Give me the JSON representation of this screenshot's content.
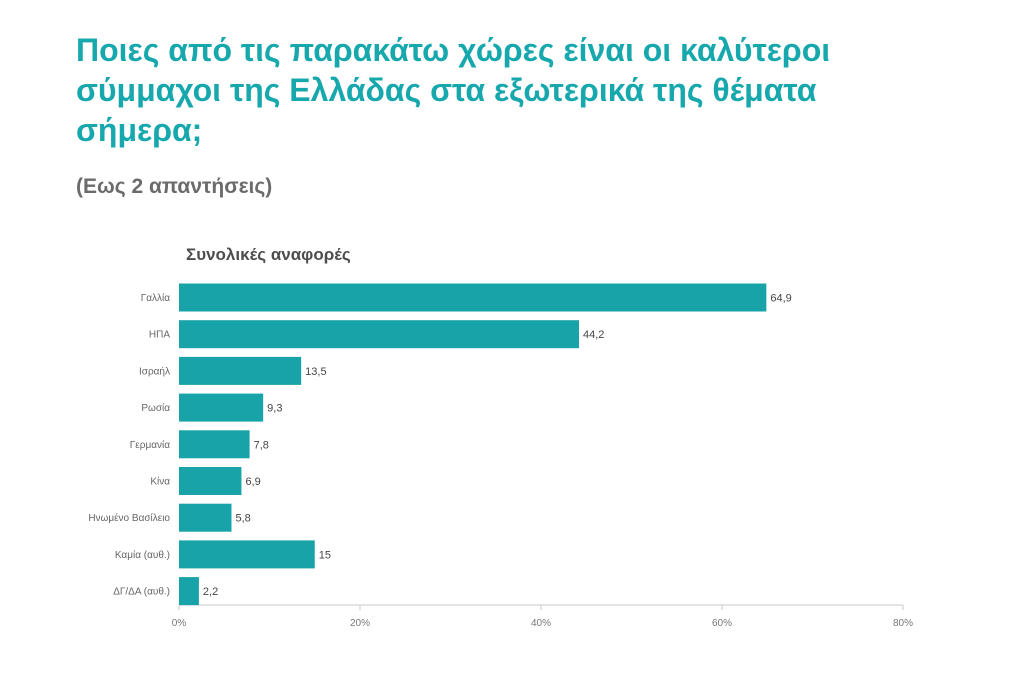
{
  "title": "Ποιες από τις παρακάτω χώρες είναι οι καλύτεροι σύμμαχοι της Ελλάδας στα εξωτερικά της θέματα σήμερα;",
  "subtitle": "(Εως 2 απαντήσεις)",
  "chart_heading": "Συνολικές αναφορές",
  "colors": {
    "bar": "#18a3a8",
    "title": "#17a8ad",
    "axis": "#c8c8c8"
  },
  "chart_data": {
    "type": "bar",
    "orientation": "horizontal",
    "title": "Συνολικές αναφορές",
    "categories": [
      "Γαλλία",
      "ΗΠΑ",
      "Ισραήλ",
      "Ρωσία",
      "Γερμανία",
      "Κίνα",
      "Ηνωμένο Βασίλειο",
      "Καμία (αυθ.)",
      "ΔΓ/ΔΑ (αυθ.)"
    ],
    "values": [
      64.9,
      44.2,
      13.5,
      9.3,
      7.8,
      6.9,
      5.8,
      15,
      2.2
    ],
    "value_labels": [
      "64,9",
      "44,2",
      "13,5",
      "9,3",
      "7,8",
      "6,9",
      "5,8",
      "15",
      "2,2"
    ],
    "xlim": [
      0,
      80
    ],
    "xticks": [
      0,
      20,
      40,
      60,
      80
    ],
    "xtick_labels": [
      "0%",
      "20%",
      "40%",
      "60%",
      "80%"
    ],
    "xlabel": "",
    "ylabel": "",
    "grid": false,
    "legend": "none"
  }
}
